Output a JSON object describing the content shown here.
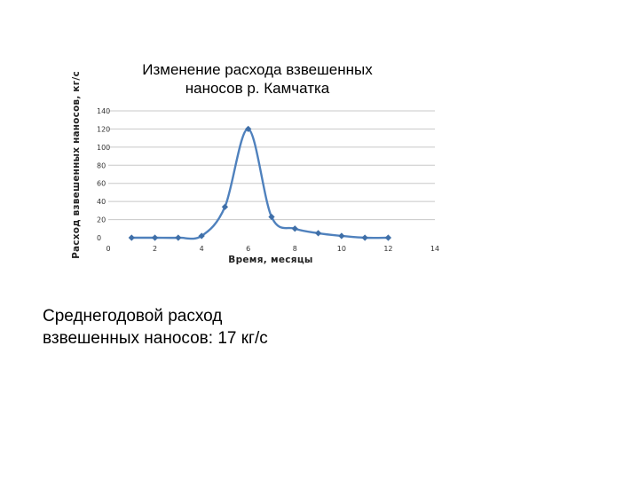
{
  "chart_data": {
    "type": "line",
    "title_line1": "Изменение расхода взвешенных",
    "title_line2": "наносов р. Камчатка",
    "xlabel": "Время, месяцы",
    "ylabel": "Расход взвешенных наносов, кг/с",
    "xlim": [
      0,
      14
    ],
    "ylim": [
      0,
      140
    ],
    "x_ticks": [
      0,
      2,
      4,
      6,
      8,
      10,
      12,
      14
    ],
    "y_ticks": [
      0,
      20,
      40,
      60,
      80,
      100,
      120,
      140
    ],
    "grid": true,
    "smooth": true,
    "color": "#4f81bd",
    "marker_color": "#3f6fa8",
    "series": [
      {
        "x": [
          1,
          2,
          3,
          4,
          5,
          6,
          7,
          8,
          9,
          10,
          11,
          12
        ],
        "values": [
          0,
          0,
          0,
          2,
          34,
          120,
          23,
          10,
          5,
          2,
          0,
          0
        ]
      }
    ]
  },
  "caption": {
    "line1": "Среднегодовой расход",
    "line2": "взвешенных наносов: 17 кг/с"
  }
}
